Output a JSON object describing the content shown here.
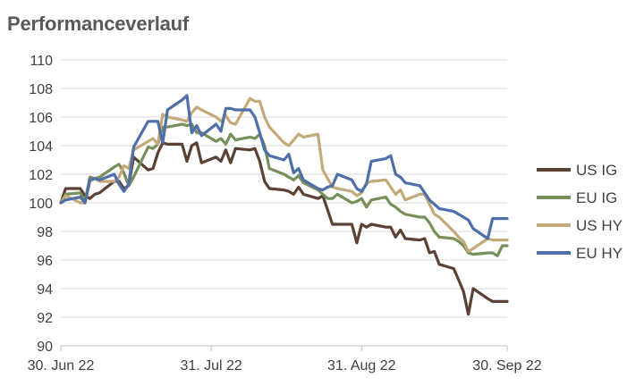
{
  "title": "Performanceverlauf",
  "chart_data": {
    "type": "line",
    "title": "Performanceverlauf",
    "xlabel": "",
    "ylabel": "",
    "ylim": [
      90,
      110
    ],
    "yticks": [
      90,
      92,
      94,
      96,
      98,
      100,
      102,
      104,
      106,
      108,
      110
    ],
    "xticks": [
      {
        "label": "30. Jun 22",
        "date": "2022-06-30"
      },
      {
        "label": "31. Jul 22",
        "date": "2022-07-31"
      },
      {
        "label": "31. Aug 22",
        "date": "2022-08-31"
      },
      {
        "label": "30. Sep 22",
        "date": "2022-09-30"
      }
    ],
    "xlim": [
      "2022-06-30",
      "2022-09-30"
    ],
    "grid": "horizontal",
    "legend": "right",
    "colors": {
      "US IG": "#5a4133",
      "EU IG": "#77905a",
      "US HY": "#c4a97a",
      "EU HY": "#4f6fa9"
    },
    "x": [
      "2022-06-30",
      "2022-07-01",
      "2022-07-04",
      "2022-07-05",
      "2022-07-06",
      "2022-07-07",
      "2022-07-08",
      "2022-07-11",
      "2022-07-12",
      "2022-07-13",
      "2022-07-14",
      "2022-07-15",
      "2022-07-18",
      "2022-07-19",
      "2022-07-20",
      "2022-07-21",
      "2022-07-22",
      "2022-07-25",
      "2022-07-26",
      "2022-07-27",
      "2022-07-28",
      "2022-07-29",
      "2022-08-01",
      "2022-08-02",
      "2022-08-03",
      "2022-08-04",
      "2022-08-05",
      "2022-08-08",
      "2022-08-09",
      "2022-08-10",
      "2022-08-11",
      "2022-08-12",
      "2022-08-15",
      "2022-08-16",
      "2022-08-17",
      "2022-08-18",
      "2022-08-19",
      "2022-08-22",
      "2022-08-23",
      "2022-08-24",
      "2022-08-25",
      "2022-08-26",
      "2022-08-29",
      "2022-08-30",
      "2022-08-31",
      "2022-09-01",
      "2022-09-02",
      "2022-09-05",
      "2022-09-06",
      "2022-09-07",
      "2022-09-08",
      "2022-09-09",
      "2022-09-12",
      "2022-09-13",
      "2022-09-14",
      "2022-09-15",
      "2022-09-16",
      "2022-09-19",
      "2022-09-20",
      "2022-09-21",
      "2022-09-22",
      "2022-09-23",
      "2022-09-26",
      "2022-09-27",
      "2022-09-28",
      "2022-09-29",
      "2022-09-30"
    ],
    "series": [
      {
        "name": "US IG",
        "values": [
          100.0,
          101.0,
          101.0,
          100.5,
          100.3,
          100.6,
          100.7,
          101.5,
          101.5,
          101.0,
          101.2,
          103.2,
          102.3,
          102.4,
          103.5,
          104.2,
          104.1,
          104.1,
          102.9,
          104.0,
          104.2,
          102.8,
          103.2,
          102.9,
          103.7,
          102.8,
          103.8,
          103.7,
          103.8,
          102.9,
          101.5,
          101.0,
          100.9,
          100.8,
          100.6,
          101.1,
          100.6,
          100.3,
          100.5,
          99.5,
          98.5,
          98.5,
          98.5,
          97.2,
          98.5,
          98.3,
          98.5,
          98.3,
          98.3,
          97.6,
          98.1,
          97.5,
          97.4,
          97.5,
          96.5,
          96.6,
          95.7,
          95.4,
          94.6,
          93.8,
          92.2,
          94.0,
          93.3,
          93.1,
          93.1,
          93.1,
          93.1
        ]
      },
      {
        "name": "EU IG",
        "values": [
          100.0,
          100.6,
          100.7,
          100.1,
          101.8,
          101.7,
          101.8,
          102.5,
          102.7,
          102.1,
          101.2,
          101.8,
          103.9,
          103.8,
          104.1,
          105.3,
          105.3,
          105.5,
          105.4,
          105.5,
          104.9,
          104.9,
          104.3,
          104.5,
          104.1,
          104.8,
          104.4,
          104.6,
          104.5,
          104.8,
          104.0,
          102.4,
          102.0,
          101.8,
          101.6,
          101.9,
          101.4,
          100.9,
          100.6,
          100.3,
          100.3,
          100.6,
          100.0,
          100.1,
          100.3,
          99.7,
          100.2,
          100.4,
          99.9,
          99.7,
          99.4,
          99.2,
          99.0,
          99.0,
          98.6,
          98.0,
          97.6,
          97.5,
          97.3,
          97.0,
          96.5,
          96.4,
          96.5,
          96.5,
          96.3,
          97.0,
          97.0
        ]
      },
      {
        "name": "US HY",
        "values": [
          100.0,
          100.5,
          100.0,
          100.0,
          101.5,
          101.7,
          101.5,
          101.5,
          101.8,
          102.6,
          102.4,
          103.7,
          104.3,
          104.5,
          104.1,
          106.2,
          106.0,
          105.8,
          105.7,
          106.3,
          106.7,
          106.5,
          106.0,
          105.7,
          106.1,
          105.6,
          105.5,
          107.3,
          107.1,
          107.1,
          106.0,
          105.3,
          104.2,
          104.0,
          104.4,
          104.8,
          104.6,
          104.8,
          102.3,
          101.7,
          101.1,
          101.0,
          100.8,
          100.5,
          100.7,
          101.4,
          101.5,
          101.6,
          101.1,
          100.6,
          100.9,
          100.2,
          100.6,
          100.6,
          99.9,
          99.2,
          99.0,
          98.0,
          97.6,
          97.3,
          96.6,
          96.8,
          97.5,
          97.4,
          97.4,
          97.4,
          97.4
        ]
      },
      {
        "name": "EU HY",
        "values": [
          100.0,
          100.2,
          100.4,
          100.0,
          101.6,
          101.7,
          101.6,
          102.0,
          101.3,
          100.8,
          101.3,
          103.9,
          105.7,
          105.7,
          105.7,
          104.2,
          106.5,
          107.2,
          107.5,
          104.9,
          105.4,
          104.7,
          105.5,
          105.0,
          106.6,
          106.6,
          106.5,
          106.5,
          106.0,
          104.9,
          103.7,
          103.3,
          103.0,
          103.4,
          102.1,
          102.4,
          101.6,
          101.0,
          100.9,
          101.1,
          101.2,
          102.0,
          101.6,
          101.0,
          100.8,
          101.3,
          102.9,
          103.1,
          103.3,
          102.0,
          101.8,
          101.4,
          101.2,
          100.7,
          100.2,
          99.9,
          99.6,
          99.4,
          99.2,
          99.0,
          98.8,
          98.2,
          97.5,
          98.9,
          98.9,
          98.9,
          98.9
        ]
      }
    ]
  }
}
